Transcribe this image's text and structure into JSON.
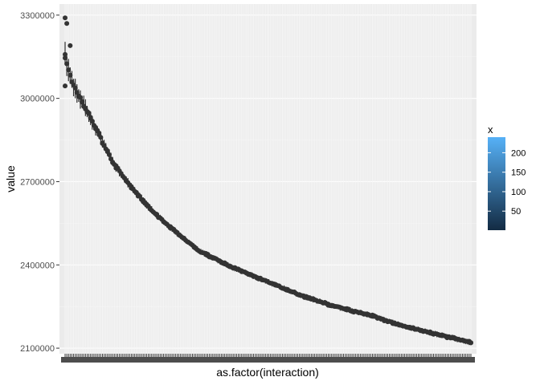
{
  "chart_data": {
    "type": "scatter",
    "title": "",
    "xlabel": "as.factor(interaction)",
    "ylabel": "value",
    "x_categories_count": 240,
    "ylim": [
      2080000,
      3340000
    ],
    "y_ticks": [
      2100000,
      2400000,
      2700000,
      3000000,
      3300000
    ],
    "y_tick_labels": [
      "2100000",
      "2400000",
      "2700000",
      "3000000",
      "3300000"
    ],
    "grid": true,
    "legend": {
      "title": "x",
      "position": "right",
      "type": "colorbar",
      "range": [
        1,
        240
      ],
      "breaks": [
        50,
        100,
        150,
        200
      ],
      "labels": [
        "50",
        "100",
        "150",
        "200"
      ],
      "low_color": "#132B43",
      "high_color": "#56B1F7"
    },
    "point_color": "#333333",
    "series": [
      {
        "x": [
          1,
          2,
          5,
          10,
          20,
          30,
          40,
          50,
          60,
          80,
          100,
          120,
          140,
          160,
          180,
          200,
          220,
          240
        ],
        "values": [
          3150000,
          3120000,
          3060000,
          3000000,
          2880000,
          2760000,
          2680000,
          2610000,
          2550000,
          2450000,
          2390000,
          2340000,
          2290000,
          2250000,
          2220000,
          2180000,
          2150000,
          2120000
        ]
      }
    ],
    "outliers": [
      {
        "x": 1,
        "value": 3290000
      },
      {
        "x": 2,
        "value": 3270000
      },
      {
        "x": 4,
        "value": 3190000
      },
      {
        "x": 1,
        "value": 3045000
      }
    ]
  }
}
